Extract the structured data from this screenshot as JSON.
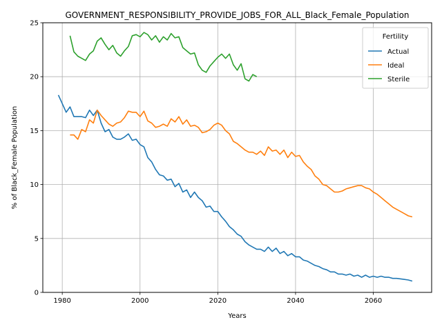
{
  "chart_data": {
    "type": "line",
    "title": "GOVERNMENT_RESPONSIBILITY_PROVIDE_JOBS_FOR_ALL_Black_Female_Population",
    "xlabel": "Years",
    "ylabel": "% of Black_Female Population",
    "xlim": [
      1975,
      2075
    ],
    "ylim": [
      0,
      25
    ],
    "xticks": [
      1980,
      2000,
      2020,
      2040,
      2060
    ],
    "yticks": [
      0,
      5,
      10,
      15,
      20,
      25
    ],
    "grid": true,
    "legend": {
      "title": "Fertility",
      "placement": "top-right"
    },
    "series": [
      {
        "name": "Actual",
        "color": "#1f77b4",
        "x": [
          1979,
          1980,
          1981,
          1982,
          1983,
          1984,
          1985,
          1986,
          1987,
          1988,
          1989,
          1990,
          1991,
          1992,
          1993,
          1994,
          1995,
          1996,
          1997,
          1998,
          1999,
          2000,
          2001,
          2002,
          2003,
          2004,
          2005,
          2006,
          2007,
          2008,
          2009,
          2010,
          2011,
          2012,
          2013,
          2014,
          2015,
          2016,
          2017,
          2018,
          2019,
          2020,
          2021,
          2022,
          2023,
          2024,
          2025,
          2026,
          2027,
          2028,
          2029,
          2030,
          2031,
          2032,
          2033,
          2034,
          2035,
          2036,
          2037,
          2038,
          2039,
          2040,
          2041,
          2042,
          2043,
          2044,
          2045,
          2046,
          2047,
          2048,
          2049,
          2050,
          2051,
          2052,
          2053,
          2054,
          2055,
          2056,
          2057,
          2058,
          2059,
          2060,
          2061,
          2062,
          2063,
          2064,
          2065,
          2066,
          2067,
          2068,
          2069,
          2070
        ],
        "y": [
          18.3,
          17.5,
          16.7,
          17.2,
          16.3,
          16.3,
          16.3,
          16.2,
          16.9,
          16.4,
          16.9,
          15.7,
          14.9,
          15.1,
          14.4,
          14.2,
          14.2,
          14.4,
          14.7,
          14.1,
          14.2,
          13.7,
          13.5,
          12.5,
          12.1,
          11.4,
          10.9,
          10.8,
          10.4,
          10.5,
          9.8,
          10.1,
          9.3,
          9.5,
          8.8,
          9.3,
          8.8,
          8.5,
          7.9,
          8.0,
          7.5,
          7.5,
          7.0,
          6.6,
          6.1,
          5.8,
          5.4,
          5.2,
          4.7,
          4.4,
          4.2,
          4.0,
          4.0,
          3.8,
          4.2,
          3.8,
          4.1,
          3.6,
          3.8,
          3.4,
          3.6,
          3.3,
          3.3,
          3.0,
          2.9,
          2.7,
          2.5,
          2.4,
          2.2,
          2.1,
          1.9,
          1.9,
          1.7,
          1.7,
          1.6,
          1.7,
          1.5,
          1.6,
          1.4,
          1.6,
          1.4,
          1.5,
          1.4,
          1.5,
          1.4,
          1.4,
          1.3,
          1.3,
          1.25,
          1.2,
          1.15,
          1.05
        ]
      },
      {
        "name": "Ideal",
        "color": "#ff7f0e",
        "x": [
          1982,
          1983,
          1984,
          1985,
          1986,
          1987,
          1988,
          1989,
          1990,
          1991,
          1992,
          1993,
          1994,
          1995,
          1996,
          1997,
          1998,
          1999,
          2000,
          2001,
          2002,
          2003,
          2004,
          2005,
          2006,
          2007,
          2008,
          2009,
          2010,
          2011,
          2012,
          2013,
          2014,
          2015,
          2016,
          2017,
          2018,
          2019,
          2020,
          2021,
          2022,
          2023,
          2024,
          2025,
          2026,
          2027,
          2028,
          2029,
          2030,
          2031,
          2032,
          2033,
          2034,
          2035,
          2036,
          2037,
          2038,
          2039,
          2040,
          2041,
          2042,
          2043,
          2044,
          2045,
          2046,
          2047,
          2048,
          2049,
          2050,
          2051,
          2052,
          2053,
          2054,
          2055,
          2056,
          2057,
          2058,
          2059,
          2060,
          2061,
          2062,
          2063,
          2064,
          2065,
          2066,
          2067,
          2068,
          2069,
          2070
        ],
        "y": [
          14.6,
          14.6,
          14.2,
          15.1,
          14.9,
          16.0,
          15.7,
          16.9,
          16.4,
          16.0,
          15.6,
          15.4,
          15.7,
          15.8,
          16.2,
          16.8,
          16.7,
          16.7,
          16.3,
          16.8,
          15.9,
          15.7,
          15.3,
          15.4,
          15.6,
          15.4,
          16.1,
          15.8,
          16.3,
          15.6,
          16.0,
          15.4,
          15.5,
          15.3,
          14.8,
          14.9,
          15.1,
          15.5,
          15.7,
          15.5,
          15.0,
          14.7,
          14.0,
          13.8,
          13.5,
          13.2,
          13.0,
          13.0,
          12.8,
          13.1,
          12.7,
          13.5,
          13.1,
          13.2,
          12.8,
          13.2,
          12.5,
          13.0,
          12.6,
          12.7,
          12.1,
          11.7,
          11.4,
          10.8,
          10.5,
          10.0,
          9.9,
          9.6,
          9.3,
          9.3,
          9.4,
          9.6,
          9.7,
          9.8,
          9.9,
          9.9,
          9.7,
          9.6,
          9.3,
          9.1,
          8.8,
          8.5,
          8.2,
          7.9,
          7.7,
          7.5,
          7.3,
          7.1,
          7.0
        ]
      },
      {
        "name": "Sterile",
        "color": "#2ca02c",
        "x": [
          1982,
          1983,
          1984,
          1985,
          1986,
          1987,
          1988,
          1989,
          1990,
          1991,
          1992,
          1993,
          1994,
          1995,
          1996,
          1997,
          1998,
          1999,
          2000,
          2001,
          2002,
          2003,
          2004,
          2005,
          2006,
          2007,
          2008,
          2009,
          2010,
          2011,
          2012,
          2013,
          2014,
          2015,
          2016,
          2017,
          2018,
          2019,
          2020,
          2021,
          2022,
          2023,
          2024,
          2025,
          2026,
          2027,
          2028,
          2029,
          2030
        ],
        "y": [
          23.8,
          22.3,
          21.9,
          21.7,
          21.5,
          22.1,
          22.4,
          23.3,
          23.6,
          23.0,
          22.5,
          22.9,
          22.2,
          21.9,
          22.4,
          22.8,
          23.8,
          23.9,
          23.7,
          24.1,
          23.9,
          23.4,
          23.8,
          23.2,
          23.7,
          23.4,
          24.0,
          23.6,
          23.7,
          22.7,
          22.4,
          22.1,
          22.2,
          21.1,
          20.6,
          20.4,
          21.0,
          21.4,
          21.8,
          22.1,
          21.7,
          22.1,
          21.1,
          20.6,
          21.2,
          19.8,
          19.6,
          20.2,
          20.0
        ]
      }
    ]
  }
}
